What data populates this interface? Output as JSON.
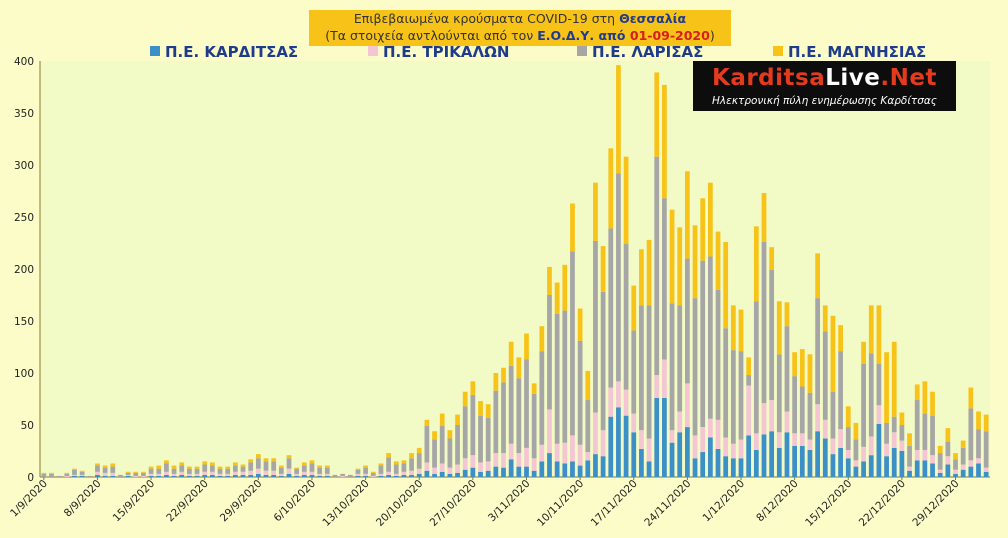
{
  "header": {
    "title_line1_prefix": "Επιβεβαιωμένα κρούσματα COVID-19 στη ",
    "title_line1_region": "Θεσσαλία",
    "title_line2_prefix": "(Τα στοιχεία αντλούνται από τον ",
    "title_line2_source": "Ε.Ο.Δ.Υ. από ",
    "title_line2_date": "01-09-2020",
    "title_line2_suffix": ")"
  },
  "logo": {
    "name_a": "Karditsa",
    "name_b": "Live",
    "name_c": ".Net",
    "tagline": "Ηλεκτρονική πύλη ενημέρωσης Καρδίτσας"
  },
  "colors": {
    "background": "#fbfcc8",
    "karditsa": "#3d8fc8",
    "trikala": "#f4c6d4",
    "larisa": "#a6a6a6",
    "magnisia": "#f8c318",
    "title_box": "#f8c318"
  },
  "chart_data": {
    "type": "bar",
    "stacked": true,
    "ylim": [
      0,
      400
    ],
    "yticks": [
      0,
      50,
      100,
      150,
      200,
      250,
      300,
      350,
      400
    ],
    "grid": false,
    "legend_position": "top",
    "x_tick_labels": [
      "1/9/2020",
      "8/9/2020",
      "15/9/2020",
      "22/9/2020",
      "29/9/2020",
      "6/10/2020",
      "13/10/2020",
      "20/10/2020",
      "27/10/2020",
      "3/11/2020",
      "10/11/2020",
      "17/11/2020",
      "24/11/2020",
      "1/12/2020",
      "8/12/2020",
      "15/12/2020",
      "22/12/2020",
      "29/12/2020"
    ],
    "x_tick_every": 7,
    "totals": [
      4,
      4,
      1,
      4,
      8,
      6,
      1,
      13,
      11,
      13,
      2,
      5,
      5,
      5,
      10,
      11,
      16,
      11,
      14,
      10,
      10,
      15,
      14,
      10,
      10,
      14,
      12,
      17,
      22,
      18,
      18,
      11,
      21,
      9,
      14,
      16,
      11,
      11,
      2,
      3,
      2,
      8,
      11,
      5,
      13,
      23,
      15,
      16,
      23,
      28,
      55,
      44,
      61,
      45,
      60,
      82,
      92,
      73,
      70,
      100,
      105,
      130,
      115,
      138,
      90,
      145,
      202,
      187,
      204,
      263,
      162,
      102,
      283,
      222,
      316,
      396,
      308,
      184,
      219,
      228,
      389,
      377,
      257,
      240,
      294,
      242,
      268,
      283,
      236,
      226,
      165,
      161,
      115,
      241,
      273,
      221,
      169,
      168,
      120,
      123,
      118,
      215,
      165,
      155,
      146,
      68,
      52,
      130,
      165,
      165,
      120,
      130,
      62,
      42,
      89,
      92,
      82,
      30,
      47,
      23,
      35,
      86,
      63,
      60
    ],
    "series": [
      {
        "name": "Π.Ε. ΚΑΡΔΙΤΣΑΣ",
        "values": [
          0,
          0,
          0,
          0,
          1,
          1,
          0,
          2,
          1,
          1,
          0,
          1,
          0,
          0,
          1,
          1,
          2,
          1,
          2,
          1,
          1,
          2,
          2,
          1,
          1,
          2,
          2,
          2,
          3,
          2,
          2,
          1,
          3,
          1,
          2,
          2,
          1,
          1,
          0,
          0,
          0,
          1,
          1,
          0,
          1,
          2,
          1,
          2,
          2,
          3,
          6,
          3,
          5,
          3,
          4,
          7,
          9,
          5,
          6,
          10,
          9,
          17,
          10,
          10,
          6,
          15,
          23,
          15,
          13,
          15,
          11,
          16,
          22,
          20,
          58,
          67,
          59,
          43,
          27,
          15,
          76,
          76,
          33,
          43,
          48,
          18,
          24,
          38,
          27,
          20,
          18,
          18,
          40,
          26,
          41,
          44,
          28,
          43,
          30,
          30,
          26,
          44,
          37,
          22,
          28,
          18,
          10,
          15,
          21,
          51,
          20,
          28,
          25,
          6,
          16,
          16,
          13,
          4,
          12,
          3,
          7,
          10,
          13,
          5
        ]
      },
      {
        "name": "Π.Ε. ΤΡΙΚΑΛΩΝ",
        "values": [
          0,
          0,
          0,
          1,
          1,
          1,
          0,
          3,
          3,
          3,
          0,
          1,
          1,
          1,
          2,
          2,
          3,
          2,
          3,
          2,
          2,
          3,
          3,
          2,
          2,
          3,
          3,
          4,
          5,
          4,
          4,
          2,
          5,
          2,
          3,
          3,
          2,
          2,
          0,
          1,
          0,
          2,
          2,
          1,
          2,
          3,
          2,
          3,
          4,
          5,
          8,
          6,
          8,
          6,
          8,
          11,
          12,
          9,
          9,
          13,
          14,
          15,
          13,
          18,
          12,
          16,
          42,
          17,
          20,
          25,
          20,
          8,
          40,
          25,
          28,
          25,
          25,
          18,
          18,
          22,
          22,
          37,
          12,
          20,
          42,
          22,
          24,
          18,
          28,
          18,
          14,
          18,
          48,
          16,
          30,
          30,
          15,
          20,
          12,
          12,
          10,
          26,
          18,
          15,
          18,
          8,
          6,
          14,
          18,
          18,
          12,
          15,
          10,
          4,
          10,
          10,
          8,
          3,
          8,
          4,
          5,
          6,
          5,
          4
        ]
      },
      {
        "name": "Π.Ε. ΛΑΡΙΣΑΣ",
        "values": [
          3,
          3,
          1,
          2,
          5,
          3,
          1,
          6,
          5,
          6,
          2,
          2,
          3,
          3,
          5,
          5,
          8,
          5,
          6,
          5,
          5,
          7,
          6,
          5,
          5,
          6,
          5,
          8,
          10,
          9,
          9,
          6,
          10,
          5,
          6,
          8,
          6,
          6,
          2,
          2,
          2,
          4,
          6,
          3,
          8,
          14,
          9,
          8,
          12,
          15,
          35,
          27,
          36,
          28,
          38,
          50,
          58,
          45,
          42,
          60,
          68,
          75,
          72,
          85,
          62,
          90,
          110,
          125,
          127,
          177,
          100,
          50,
          165,
          133,
          153,
          200,
          140,
          80,
          120,
          128,
          210,
          155,
          122,
          102,
          120,
          132,
          160,
          156,
          125,
          105,
          90,
          85,
          10,
          127,
          155,
          125,
          75,
          82,
          55,
          45,
          45,
          102,
          85,
          45,
          75,
          22,
          20,
          80,
          80,
          40,
          20,
          15,
          15,
          20,
          48,
          35,
          38,
          16,
          14,
          10,
          16,
          50,
          28,
          35
        ]
      },
      {
        "name": "Π.Ε. ΜΑΓΝΗΣΙΑΣ",
        "values": [
          1,
          1,
          0,
          1,
          1,
          1,
          0,
          2,
          2,
          3,
          0,
          1,
          1,
          1,
          2,
          3,
          3,
          3,
          3,
          2,
          2,
          3,
          3,
          2,
          2,
          3,
          2,
          3,
          4,
          3,
          3,
          2,
          3,
          1,
          3,
          3,
          2,
          2,
          0,
          0,
          0,
          1,
          2,
          1,
          2,
          4,
          3,
          3,
          5,
          5,
          6,
          8,
          12,
          8,
          10,
          14,
          13,
          14,
          13,
          17,
          14,
          23,
          20,
          25,
          10,
          24,
          27,
          30,
          44,
          46,
          31,
          28,
          56,
          44,
          77,
          104,
          84,
          43,
          54,
          63,
          81,
          109,
          90,
          75,
          84,
          70,
          60,
          71,
          56,
          83,
          43,
          40,
          17,
          72,
          47,
          22,
          51,
          23,
          23,
          36,
          37,
          43,
          25,
          73,
          25,
          20,
          16,
          21,
          46,
          56,
          68,
          72,
          12,
          12,
          15,
          31,
          23,
          7,
          13,
          6,
          7,
          20,
          17,
          16
        ]
      }
    ]
  }
}
